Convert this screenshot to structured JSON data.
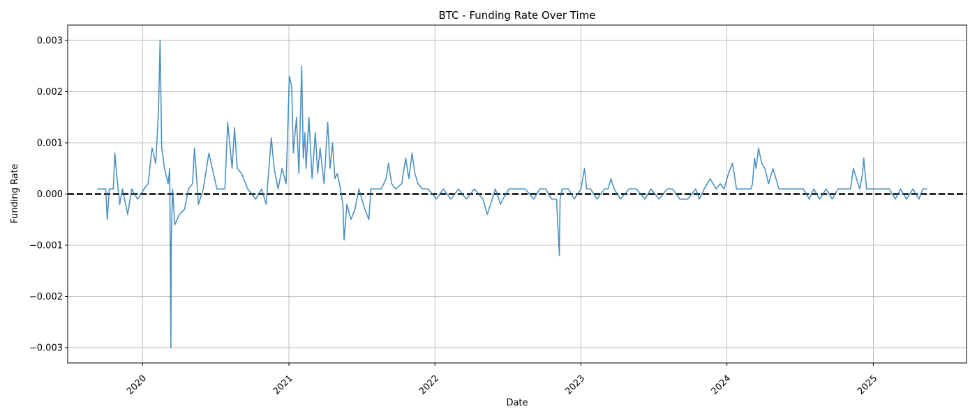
{
  "chart_data": {
    "type": "line",
    "title": "BTC - Funding Rate Over Time",
    "xlabel": "Date",
    "ylabel": "Funding Rate",
    "xlim": [
      "2019-06-28",
      "2025-08-22"
    ],
    "ylim": [
      -0.0033,
      0.0033
    ],
    "grid": true,
    "legend": "none",
    "x_ticks": [
      "2020-01-01",
      "2021-01-01",
      "2022-01-01",
      "2023-01-01",
      "2024-01-01",
      "2025-01-01"
    ],
    "x_tick_labels": [
      "2020",
      "2021",
      "2022",
      "2023",
      "2024",
      "2025"
    ],
    "y_ticks": [
      -0.003,
      -0.002,
      -0.001,
      0.0,
      0.001,
      0.002,
      0.003
    ],
    "y_tick_labels": [
      "−0.003",
      "−0.002",
      "−0.001",
      "0.000",
      "0.001",
      "0.002",
      "0.003"
    ],
    "reference_line": {
      "y": 0.0,
      "style": "dashed",
      "color": "#000000"
    },
    "series": [
      {
        "color": "#1f77b4",
        "x": [
          "2019-09-10",
          "2019-10-01",
          "2019-10-05",
          "2019-10-10",
          "2019-10-20",
          "2019-10-24",
          "2019-10-27",
          "2019-11-05",
          "2019-11-12",
          "2019-11-25",
          "2019-12-05",
          "2019-12-20",
          "2020-01-05",
          "2020-01-15",
          "2020-01-25",
          "2020-02-03",
          "2020-02-10",
          "2020-02-14",
          "2020-02-18",
          "2020-02-25",
          "2020-03-05",
          "2020-03-09",
          "2020-03-12",
          "2020-03-13",
          "2020-03-16",
          "2020-03-22",
          "2020-04-02",
          "2020-04-15",
          "2020-04-25",
          "2020-05-05",
          "2020-05-10",
          "2020-05-20",
          "2020-06-01",
          "2020-06-15",
          "2020-07-05",
          "2020-07-25",
          "2020-08-01",
          "2020-08-12",
          "2020-08-18",
          "2020-08-25",
          "2020-09-05",
          "2020-09-20",
          "2020-10-10",
          "2020-10-25",
          "2020-11-05",
          "2020-11-18",
          "2020-11-25",
          "2020-12-05",
          "2020-12-15",
          "2020-12-25",
          "2021-01-02",
          "2021-01-08",
          "2021-01-12",
          "2021-01-20",
          "2021-01-26",
          "2021-02-02",
          "2021-02-06",
          "2021-02-10",
          "2021-02-13",
          "2021-02-20",
          "2021-02-28",
          "2021-03-08",
          "2021-03-14",
          "2021-03-20",
          "2021-03-30",
          "2021-04-08",
          "2021-04-14",
          "2021-04-20",
          "2021-04-26",
          "2021-05-02",
          "2021-05-10",
          "2021-05-16",
          "2021-05-19",
          "2021-05-26",
          "2021-06-05",
          "2021-06-15",
          "2021-06-25",
          "2021-07-10",
          "2021-07-20",
          "2021-07-25",
          "2021-08-05",
          "2021-08-20",
          "2021-09-01",
          "2021-09-07",
          "2021-09-15",
          "2021-09-25",
          "2021-10-10",
          "2021-10-20",
          "2021-10-28",
          "2021-11-05",
          "2021-11-12",
          "2021-11-20",
          "2021-12-01",
          "2021-12-15",
          "2022-01-05",
          "2022-01-22",
          "2022-02-10",
          "2022-03-01",
          "2022-03-20",
          "2022-04-10",
          "2022-05-01",
          "2022-05-12",
          "2022-06-01",
          "2022-06-14",
          "2022-06-20",
          "2022-07-05",
          "2022-07-25",
          "2022-08-15",
          "2022-09-05",
          "2022-09-20",
          "2022-10-05",
          "2022-10-20",
          "2022-11-01",
          "2022-11-08",
          "2022-11-10",
          "2022-11-15",
          "2022-12-01",
          "2022-12-15",
          "2023-01-01",
          "2023-01-10",
          "2023-01-15",
          "2023-01-25",
          "2023-02-10",
          "2023-03-01",
          "2023-03-10",
          "2023-03-17",
          "2023-03-25",
          "2023-04-10",
          "2023-05-01",
          "2023-05-20",
          "2023-06-10",
          "2023-06-25",
          "2023-07-15",
          "2023-08-05",
          "2023-08-18",
          "2023-09-05",
          "2023-09-25",
          "2023-10-15",
          "2023-10-24",
          "2023-11-05",
          "2023-11-20",
          "2023-12-05",
          "2023-12-15",
          "2023-12-25",
          "2024-01-05",
          "2024-01-15",
          "2024-01-25",
          "2024-02-10",
          "2024-02-25",
          "2024-03-01",
          "2024-03-05",
          "2024-03-10",
          "2024-03-14",
          "2024-03-20",
          "2024-03-28",
          "2024-04-05",
          "2024-04-14",
          "2024-04-25",
          "2024-05-10",
          "2024-05-25",
          "2024-06-10",
          "2024-06-25",
          "2024-07-10",
          "2024-07-25",
          "2024-08-05",
          "2024-08-20",
          "2024-09-05",
          "2024-09-20",
          "2024-10-05",
          "2024-10-20",
          "2024-11-05",
          "2024-11-12",
          "2024-11-20",
          "2024-11-28",
          "2024-12-05",
          "2024-12-08",
          "2024-12-15",
          "2024-12-25",
          "2025-01-10",
          "2025-01-25",
          "2025-02-10",
          "2025-02-25",
          "2025-03-10",
          "2025-03-25",
          "2025-04-10",
          "2025-04-25",
          "2025-05-05",
          "2025-05-15"
        ],
        "y": [
          0.0001,
          0.0001,
          -0.0005,
          0.0001,
          0.0001,
          0.0008,
          0.0005,
          -0.0002,
          0.0001,
          -0.0004,
          0.0001,
          -0.0001,
          0.0001,
          0.0002,
          0.0009,
          0.0006,
          0.0016,
          0.003,
          0.0009,
          0.0005,
          0.0002,
          0.0005,
          -0.003,
          -0.0009,
          0.0001,
          -0.0006,
          -0.0004,
          -0.0003,
          0.0001,
          0.0002,
          0.0009,
          -0.0002,
          0.0001,
          0.0008,
          0.0001,
          0.0001,
          0.0014,
          0.0005,
          0.0013,
          0.0005,
          0.0004,
          0.0001,
          -0.0001,
          0.0001,
          -0.0002,
          0.0011,
          0.0005,
          0.0001,
          0.0005,
          0.0002,
          0.0023,
          0.0021,
          0.0008,
          0.0015,
          0.0004,
          0.0025,
          0.0007,
          0.0012,
          0.0005,
          0.0015,
          0.0003,
          0.0012,
          0.0004,
          0.0009,
          0.0002,
          0.0014,
          0.0005,
          0.001,
          0.0003,
          0.0004,
          0.0001,
          -0.0002,
          -0.0009,
          -0.0002,
          -0.0005,
          -0.0003,
          0.0001,
          -0.0003,
          -0.0005,
          0.0001,
          0.0001,
          0.0001,
          0.0003,
          0.0006,
          0.0002,
          0.0001,
          0.0002,
          0.0007,
          0.0003,
          0.0008,
          0.0004,
          0.0002,
          0.0001,
          0.0001,
          -0.0001,
          0.0001,
          -0.0001,
          0.0001,
          -0.0001,
          0.0001,
          -0.0001,
          -0.0004,
          0.0001,
          -0.0002,
          -0.0001,
          0.0001,
          0.0001,
          0.0001,
          -0.0001,
          0.0001,
          0.0001,
          -0.0001,
          -0.0001,
          -0.0012,
          -0.0001,
          0.0001,
          0.0001,
          -0.0001,
          0.0001,
          0.0005,
          0.0001,
          0.0001,
          -0.0001,
          0.0001,
          0.0001,
          0.0003,
          0.0001,
          -0.0001,
          0.0001,
          0.0001,
          -0.0001,
          0.0001,
          -0.0001,
          0.0001,
          0.0001,
          -0.0001,
          -0.0001,
          0.0001,
          -0.0001,
          0.0001,
          0.0003,
          0.0001,
          0.0002,
          0.0001,
          0.0004,
          0.0006,
          0.0001,
          0.0001,
          0.0001,
          0.0001,
          0.0002,
          0.0007,
          0.0005,
          0.0009,
          0.0006,
          0.0005,
          0.0002,
          0.0005,
          0.0001,
          0.0001,
          0.0001,
          0.0001,
          0.0001,
          -0.0001,
          0.0001,
          -0.0001,
          0.0001,
          -0.0001,
          0.0001,
          0.0001,
          0.0001,
          0.0005,
          0.0003,
          0.0001,
          0.0004,
          0.0007,
          0.0001,
          0.0001,
          0.0001,
          0.0001,
          0.0001,
          -0.0001,
          0.0001,
          -0.0001,
          0.0001,
          -0.0001,
          0.0001,
          0.0001
        ]
      }
    ]
  }
}
